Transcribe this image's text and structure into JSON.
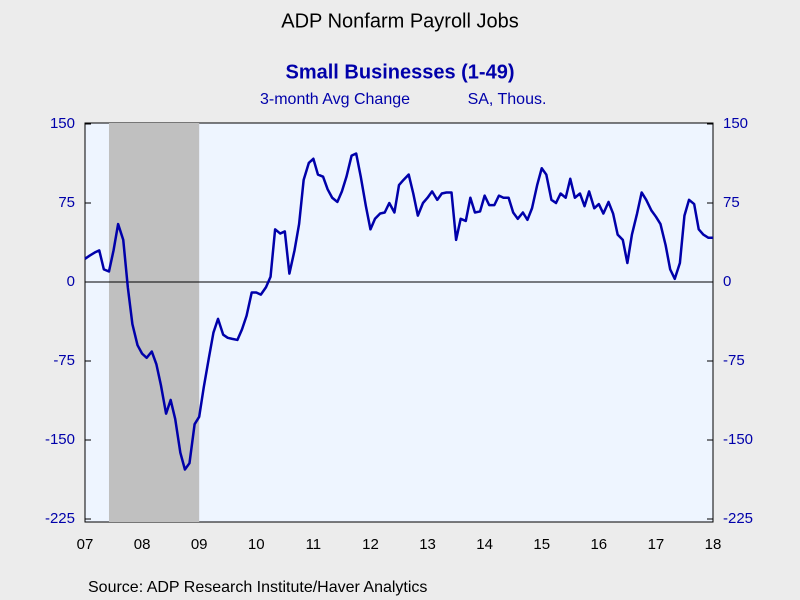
{
  "chart_data": {
    "type": "line",
    "title": "ADP Nonfarm Payroll Jobs",
    "subtitle": "Small Businesses (1-49)",
    "units_left": "3-month Avg Change",
    "units_right": "SA, Thous.",
    "source": "Source:  ADP Research Institute/Haver Analytics",
    "xlim": [
      2007.5,
      2018.5
    ],
    "xticks": [
      {
        "value": 2007.5,
        "label": "07"
      },
      {
        "value": 2008.5,
        "label": "08"
      },
      {
        "value": 2009.5,
        "label": "09"
      },
      {
        "value": 2010.5,
        "label": "10"
      },
      {
        "value": 2011.5,
        "label": "11"
      },
      {
        "value": 2012.5,
        "label": "12"
      },
      {
        "value": 2013.5,
        "label": "13"
      },
      {
        "value": 2014.5,
        "label": "14"
      },
      {
        "value": 2015.5,
        "label": "15"
      },
      {
        "value": 2016.5,
        "label": "16"
      },
      {
        "value": 2017.5,
        "label": "17"
      },
      {
        "value": 2018.5,
        "label": "18"
      }
    ],
    "ylim": [
      -225,
      150
    ],
    "yticks": [
      150,
      75,
      0,
      -75,
      -150,
      -225
    ],
    "y2lim": [
      -225,
      150
    ],
    "y2ticks": [
      150,
      75,
      0,
      -75,
      -150,
      -225
    ],
    "shaded_regions": [
      [
        2007.92,
        2009.5
      ]
    ],
    "shade_color": "#c0c0c0",
    "x": [
      2007.5,
      2007.58,
      2007.67,
      2007.75,
      2007.83,
      2007.92,
      2008,
      2008.08,
      2008.17,
      2008.25,
      2008.33,
      2008.42,
      2008.5,
      2008.58,
      2008.67,
      2008.75,
      2008.83,
      2008.92,
      2009,
      2009.08,
      2009.17,
      2009.25,
      2009.33,
      2009.42,
      2009.5,
      2009.58,
      2009.67,
      2009.75,
      2009.83,
      2009.92,
      2010,
      2010.08,
      2010.17,
      2010.25,
      2010.33,
      2010.42,
      2010.5,
      2010.58,
      2010.67,
      2010.75,
      2010.83,
      2010.92,
      2011,
      2011.08,
      2011.17,
      2011.25,
      2011.33,
      2011.42,
      2011.5,
      2011.58,
      2011.67,
      2011.75,
      2011.83,
      2011.92,
      2012,
      2012.08,
      2012.17,
      2012.25,
      2012.33,
      2012.42,
      2012.5,
      2012.58,
      2012.67,
      2012.75,
      2012.83,
      2012.92,
      2013,
      2013.08,
      2013.17,
      2013.25,
      2013.33,
      2013.42,
      2013.5,
      2013.58,
      2013.67,
      2013.75,
      2013.83,
      2013.92,
      2014,
      2014.08,
      2014.17,
      2014.25,
      2014.33,
      2014.42,
      2014.5,
      2014.58,
      2014.67,
      2014.75,
      2014.83,
      2014.92,
      2015,
      2015.08,
      2015.17,
      2015.25,
      2015.33,
      2015.42,
      2015.5,
      2015.58,
      2015.67,
      2015.75,
      2015.83,
      2015.92,
      2016,
      2016.08,
      2016.17,
      2016.25,
      2016.33,
      2016.42,
      2016.5,
      2016.58,
      2016.67,
      2016.75,
      2016.83,
      2016.92,
      2017,
      2017.08,
      2017.17,
      2017.25,
      2017.33,
      2017.42,
      2017.5,
      2017.58,
      2017.67,
      2017.75,
      2017.83,
      2017.92,
      2018,
      2018.08,
      2018.17,
      2018.25,
      2018.33,
      2018.42,
      2018.5
    ],
    "series": [
      {
        "name": "Small Businesses (1-49)",
        "color": "#0000aa",
        "values": [
          22,
          25,
          28,
          30,
          12,
          10,
          30,
          55,
          40,
          -5,
          -40,
          -60,
          -68,
          -72,
          -66,
          -78,
          -98,
          -125,
          -112,
          -130,
          -162,
          -178,
          -172,
          -135,
          -128,
          -100,
          -72,
          -48,
          -35,
          -50,
          -53,
          -54,
          -55,
          -45,
          -32,
          -10,
          -10,
          -12,
          -5,
          5,
          50,
          46,
          48,
          8,
          30,
          55,
          97,
          113,
          117,
          102,
          100,
          88,
          80,
          76,
          86,
          100,
          120,
          122,
          100,
          72,
          50,
          60,
          65,
          66,
          75,
          66,
          92,
          97,
          102,
          84,
          63,
          75,
          80,
          86,
          78,
          84,
          85,
          85,
          40,
          60,
          58,
          80,
          66,
          67,
          82,
          73,
          73,
          82,
          80,
          80,
          66,
          60,
          66,
          59,
          70,
          92,
          108,
          102,
          78,
          75,
          84,
          80,
          98,
          80,
          84,
          72,
          86,
          70,
          74,
          65,
          76,
          65,
          45,
          40,
          18,
          45,
          65,
          85,
          78,
          68,
          62,
          55,
          35,
          12,
          3,
          18,
          63,
          78,
          74,
          50,
          45,
          42,
          42
        ]
      }
    ]
  }
}
